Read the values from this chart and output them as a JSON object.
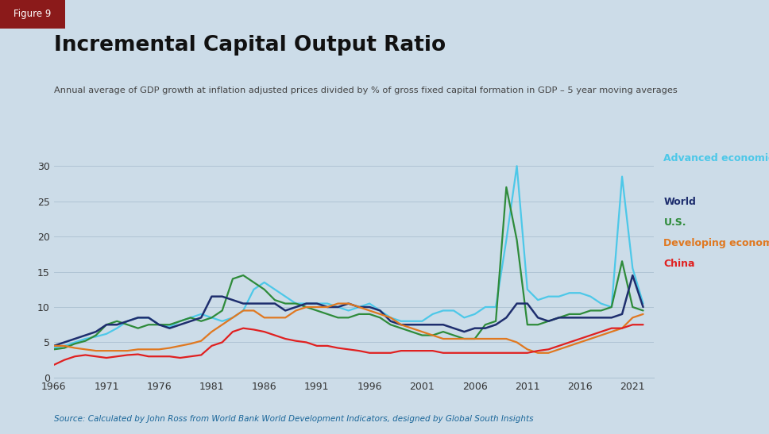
{
  "title": "Incremental Capital Output Ratio",
  "subtitle": "Annual average of GDP growth at inflation adjusted prices divided by % of gross fixed capital formation in GDP – 5 year moving averages",
  "figure_label": "Figure 9",
  "source": "Source: Calculated by John Ross from World Bank World Development Indicators, designed by Global South Insights",
  "background_color": "#ccdce8",
  "plot_bg_color": "#ccdce8",
  "title_color": "#111111",
  "subtitle_color": "#444444",
  "source_color": "#1a6699",
  "figure_label_bg": "#8b1a1a",
  "figure_label_color": "#ffffff",
  "xlim": [
    1966,
    2023
  ],
  "ylim": [
    0,
    32
  ],
  "yticks": [
    0,
    5,
    10,
    15,
    20,
    25,
    30
  ],
  "xticks": [
    1966,
    1971,
    1976,
    1981,
    1986,
    1991,
    1996,
    2001,
    2006,
    2011,
    2016,
    2021
  ],
  "series": {
    "Advanced economies": {
      "color": "#4dc8e8",
      "linewidth": 1.6,
      "years": [
        1966,
        1967,
        1968,
        1969,
        1970,
        1971,
        1972,
        1973,
        1974,
        1975,
        1976,
        1977,
        1978,
        1979,
        1980,
        1981,
        1982,
        1983,
        1984,
        1985,
        1986,
        1987,
        1988,
        1989,
        1990,
        1991,
        1992,
        1993,
        1994,
        1995,
        1996,
        1997,
        1998,
        1999,
        2000,
        2001,
        2002,
        2003,
        2004,
        2005,
        2006,
        2007,
        2008,
        2009,
        2010,
        2011,
        2012,
        2013,
        2014,
        2015,
        2016,
        2017,
        2018,
        2019,
        2020,
        2021,
        2022
      ],
      "values": [
        4.2,
        4.5,
        5.0,
        5.5,
        5.8,
        6.2,
        7.0,
        8.0,
        8.5,
        8.5,
        7.5,
        7.2,
        8.0,
        8.5,
        9.0,
        8.5,
        8.0,
        8.5,
        9.5,
        12.5,
        13.5,
        12.5,
        11.5,
        10.5,
        10.5,
        10.5,
        10.5,
        10.0,
        9.5,
        10.0,
        10.5,
        9.5,
        8.5,
        8.0,
        8.0,
        8.0,
        9.0,
        9.5,
        9.5,
        8.5,
        9.0,
        10.0,
        10.0,
        19.5,
        30.0,
        12.5,
        11.0,
        11.5,
        11.5,
        12.0,
        12.0,
        11.5,
        10.5,
        10.0,
        28.5,
        15.5,
        10.5
      ]
    },
    "U.S.": {
      "color": "#2e8b3a",
      "linewidth": 1.6,
      "years": [
        1966,
        1967,
        1968,
        1969,
        1970,
        1971,
        1972,
        1973,
        1974,
        1975,
        1976,
        1977,
        1978,
        1979,
        1980,
        1981,
        1982,
        1983,
        1984,
        1985,
        1986,
        1987,
        1988,
        1989,
        1990,
        1991,
        1992,
        1993,
        1994,
        1995,
        1996,
        1997,
        1998,
        1999,
        2000,
        2001,
        2002,
        2003,
        2004,
        2005,
        2006,
        2007,
        2008,
        2009,
        2010,
        2011,
        2012,
        2013,
        2014,
        2015,
        2016,
        2017,
        2018,
        2019,
        2020,
        2021,
        2022
      ],
      "values": [
        4.0,
        4.2,
        4.8,
        5.2,
        6.0,
        7.5,
        8.0,
        7.5,
        7.0,
        7.5,
        7.5,
        7.5,
        8.0,
        8.5,
        8.0,
        8.5,
        9.5,
        14.0,
        14.5,
        13.5,
        12.5,
        11.0,
        10.5,
        10.5,
        10.0,
        9.5,
        9.0,
        8.5,
        8.5,
        9.0,
        9.0,
        8.5,
        7.5,
        7.0,
        6.5,
        6.0,
        6.0,
        6.5,
        6.0,
        5.5,
        5.5,
        7.5,
        8.0,
        27.0,
        19.5,
        7.5,
        7.5,
        8.0,
        8.5,
        9.0,
        9.0,
        9.5,
        9.5,
        10.0,
        16.5,
        10.0,
        9.5
      ]
    },
    "World": {
      "color": "#1e2e6e",
      "linewidth": 1.8,
      "years": [
        1966,
        1967,
        1968,
        1969,
        1970,
        1971,
        1972,
        1973,
        1974,
        1975,
        1976,
        1977,
        1978,
        1979,
        1980,
        1981,
        1982,
        1983,
        1984,
        1985,
        1986,
        1987,
        1988,
        1989,
        1990,
        1991,
        1992,
        1993,
        1994,
        1995,
        1996,
        1997,
        1998,
        1999,
        2000,
        2001,
        2002,
        2003,
        2004,
        2005,
        2006,
        2007,
        2008,
        2009,
        2010,
        2011,
        2012,
        2013,
        2014,
        2015,
        2016,
        2017,
        2018,
        2019,
        2020,
        2021,
        2022
      ],
      "values": [
        4.5,
        5.0,
        5.5,
        6.0,
        6.5,
        7.5,
        7.5,
        8.0,
        8.5,
        8.5,
        7.5,
        7.0,
        7.5,
        8.0,
        8.5,
        11.5,
        11.5,
        11.0,
        10.5,
        10.5,
        10.5,
        10.5,
        9.5,
        10.0,
        10.5,
        10.5,
        10.0,
        10.0,
        10.5,
        10.0,
        10.0,
        9.5,
        8.0,
        7.5,
        7.5,
        7.5,
        7.5,
        7.5,
        7.0,
        6.5,
        7.0,
        7.0,
        7.5,
        8.5,
        10.5,
        10.5,
        8.5,
        8.0,
        8.5,
        8.5,
        8.5,
        8.5,
        8.5,
        8.5,
        9.0,
        14.5,
        10.0
      ]
    },
    "Developing economies": {
      "color": "#e07820",
      "linewidth": 1.6,
      "years": [
        1966,
        1967,
        1968,
        1969,
        1970,
        1971,
        1972,
        1973,
        1974,
        1975,
        1976,
        1977,
        1978,
        1979,
        1980,
        1981,
        1982,
        1983,
        1984,
        1985,
        1986,
        1987,
        1988,
        1989,
        1990,
        1991,
        1992,
        1993,
        1994,
        1995,
        1996,
        1997,
        1998,
        1999,
        2000,
        2001,
        2002,
        2003,
        2004,
        2005,
        2006,
        2007,
        2008,
        2009,
        2010,
        2011,
        2012,
        2013,
        2014,
        2015,
        2016,
        2017,
        2018,
        2019,
        2020,
        2021,
        2022
      ],
      "values": [
        4.5,
        4.5,
        4.2,
        4.0,
        3.8,
        3.8,
        3.8,
        3.8,
        4.0,
        4.0,
        4.0,
        4.2,
        4.5,
        4.8,
        5.2,
        6.5,
        7.5,
        8.5,
        9.5,
        9.5,
        8.5,
        8.5,
        8.5,
        9.5,
        10.0,
        10.0,
        10.0,
        10.5,
        10.5,
        10.0,
        9.5,
        9.0,
        8.5,
        7.5,
        7.0,
        6.5,
        6.0,
        5.5,
        5.5,
        5.5,
        5.5,
        5.5,
        5.5,
        5.5,
        5.0,
        4.0,
        3.5,
        3.5,
        4.0,
        4.5,
        5.0,
        5.5,
        6.0,
        6.5,
        7.0,
        8.5,
        9.0
      ]
    },
    "China": {
      "color": "#e02020",
      "linewidth": 1.6,
      "years": [
        1966,
        1967,
        1968,
        1969,
        1970,
        1971,
        1972,
        1973,
        1974,
        1975,
        1976,
        1977,
        1978,
        1979,
        1980,
        1981,
        1982,
        1983,
        1984,
        1985,
        1986,
        1987,
        1988,
        1989,
        1990,
        1991,
        1992,
        1993,
        1994,
        1995,
        1996,
        1997,
        1998,
        1999,
        2000,
        2001,
        2002,
        2003,
        2004,
        2005,
        2006,
        2007,
        2008,
        2009,
        2010,
        2011,
        2012,
        2013,
        2014,
        2015,
        2016,
        2017,
        2018,
        2019,
        2020,
        2021,
        2022
      ],
      "values": [
        1.8,
        2.5,
        3.0,
        3.2,
        3.0,
        2.8,
        3.0,
        3.2,
        3.3,
        3.0,
        3.0,
        3.0,
        2.8,
        3.0,
        3.2,
        4.5,
        5.0,
        6.5,
        7.0,
        6.8,
        6.5,
        6.0,
        5.5,
        5.2,
        5.0,
        4.5,
        4.5,
        4.2,
        4.0,
        3.8,
        3.5,
        3.5,
        3.5,
        3.8,
        3.8,
        3.8,
        3.8,
        3.5,
        3.5,
        3.5,
        3.5,
        3.5,
        3.5,
        3.5,
        3.5,
        3.5,
        3.8,
        4.0,
        4.5,
        5.0,
        5.5,
        6.0,
        6.5,
        7.0,
        7.0,
        7.5,
        7.5
      ]
    }
  }
}
